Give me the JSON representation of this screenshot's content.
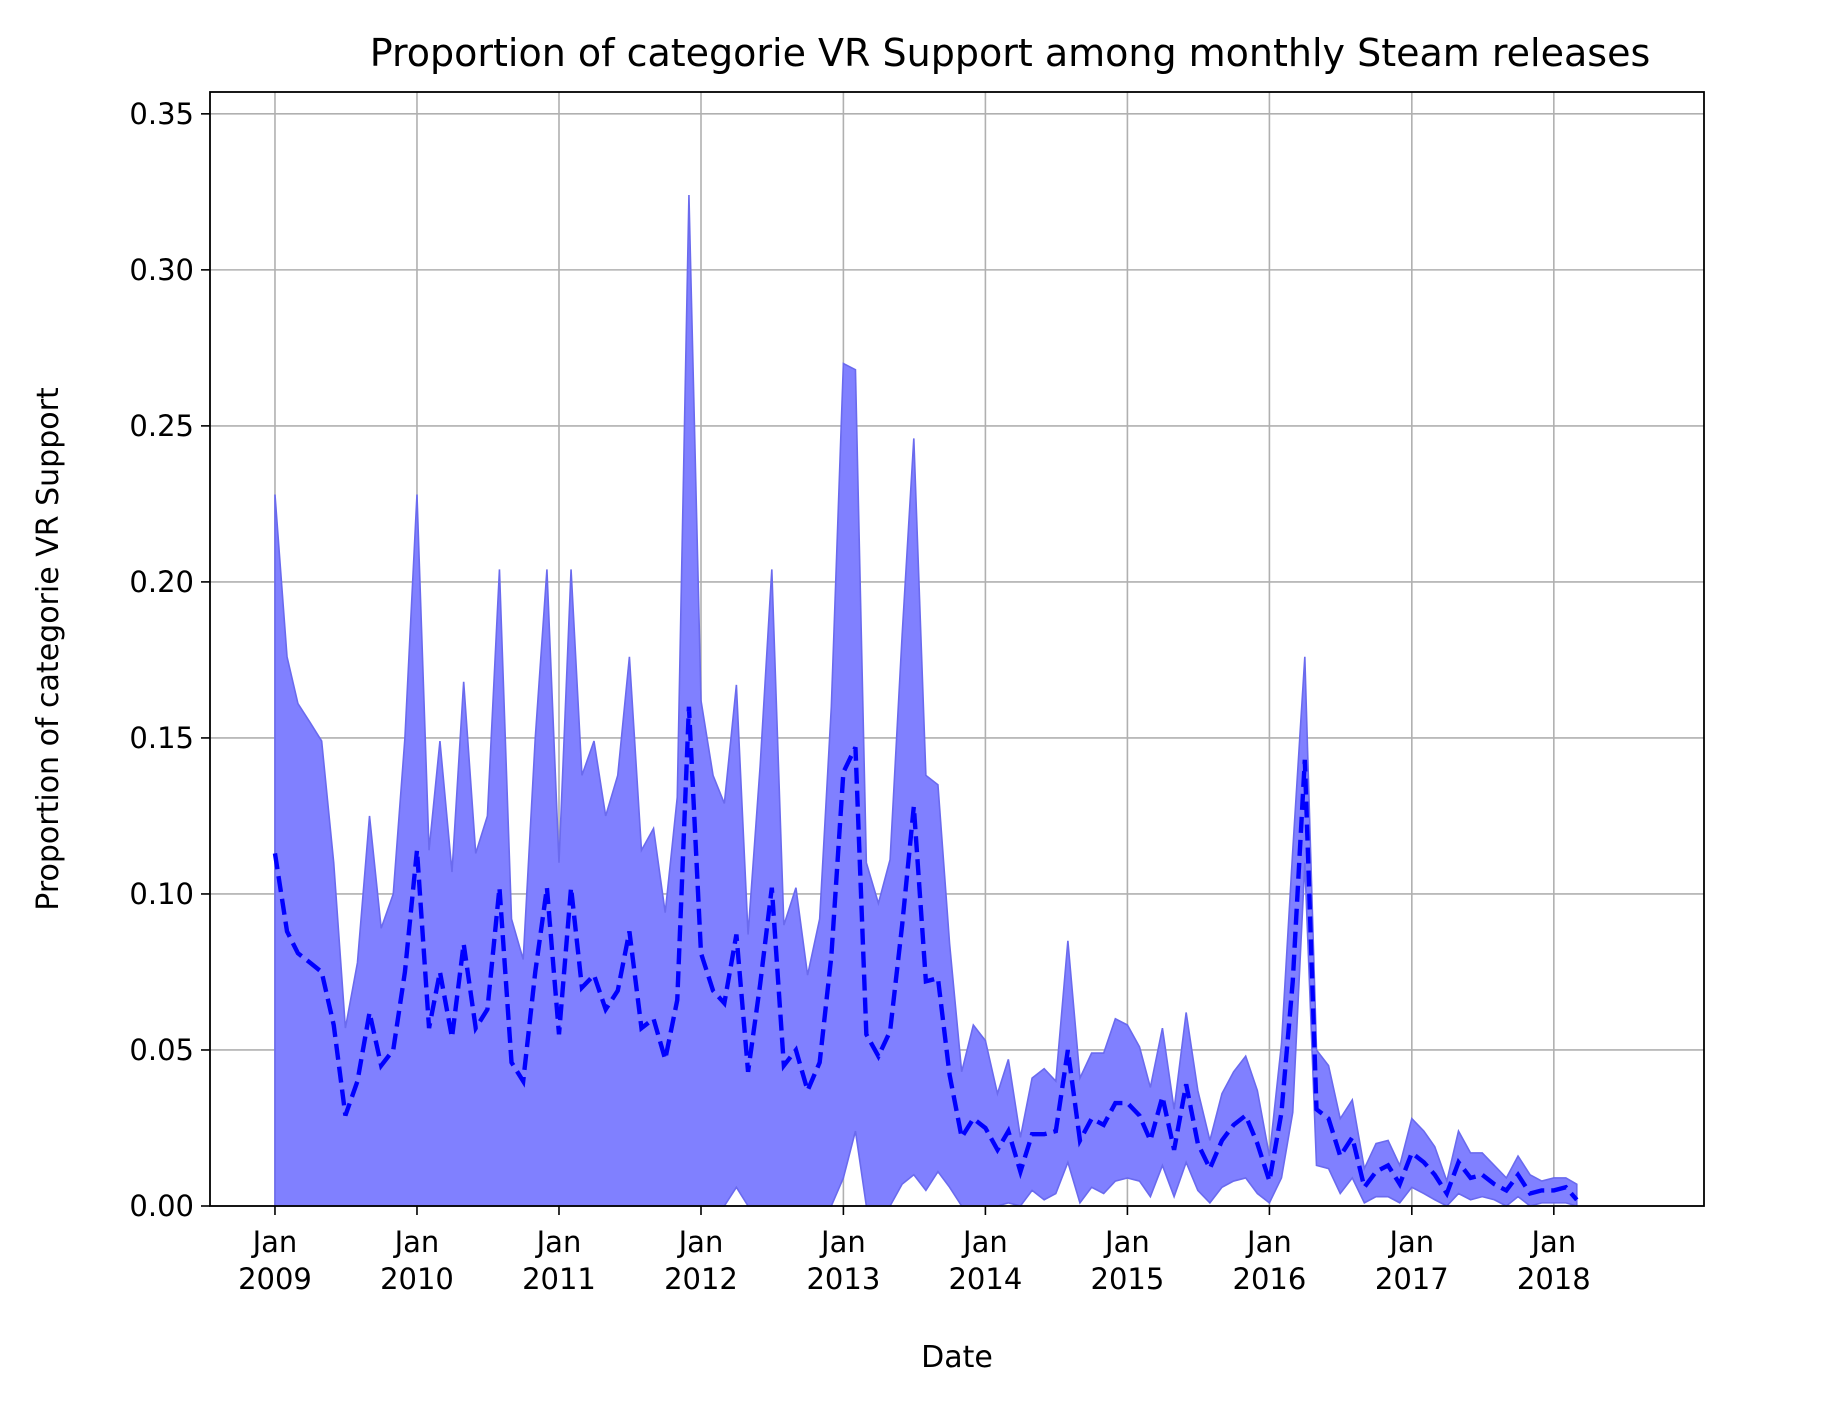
{
  "chart_data": {
    "type": "area",
    "title": "Proportion of categorie VR Support among monthly Steam releases",
    "xlabel": "Date",
    "ylabel": "Proportion of categorie VR Support",
    "ylim": [
      0,
      0.357
    ],
    "xlim": [
      "2008-07-18",
      "2019-01-22"
    ],
    "grid": true,
    "x_ticks": [
      {
        "date": "2009-01",
        "line1": "Jan",
        "line2": "2009"
      },
      {
        "date": "2010-01",
        "line1": "Jan",
        "line2": "2010"
      },
      {
        "date": "2011-01",
        "line1": "Jan",
        "line2": "2011"
      },
      {
        "date": "2012-01",
        "line1": "Jan",
        "line2": "2012"
      },
      {
        "date": "2013-01",
        "line1": "Jan",
        "line2": "2013"
      },
      {
        "date": "2014-01",
        "line1": "Jan",
        "line2": "2014"
      },
      {
        "date": "2015-01",
        "line1": "Jan",
        "line2": "2015"
      },
      {
        "date": "2016-01",
        "line1": "Jan",
        "line2": "2016"
      },
      {
        "date": "2017-01",
        "line1": "Jan",
        "line2": "2017"
      },
      {
        "date": "2018-01",
        "line1": "Jan",
        "line2": "2018"
      }
    ],
    "y_ticks": [
      "0.00",
      "0.05",
      "0.10",
      "0.15",
      "0.20",
      "0.25",
      "0.30",
      "0.35"
    ],
    "y_tick_values": [
      0,
      0.05,
      0.1,
      0.15,
      0.2,
      0.25,
      0.3,
      0.35
    ],
    "colors": {
      "line": "#0000ff",
      "band": "#8080ff",
      "band_edge": "#6666ee"
    },
    "x": [
      "2009-01",
      "2009-02",
      "2009-03",
      "2009-04",
      "2009-05",
      "2009-06",
      "2009-07",
      "2009-08",
      "2009-09",
      "2009-10",
      "2009-11",
      "2009-12",
      "2010-01",
      "2010-02",
      "2010-03",
      "2010-04",
      "2010-05",
      "2010-06",
      "2010-07",
      "2010-08",
      "2010-09",
      "2010-10",
      "2010-11",
      "2010-12",
      "2011-01",
      "2011-02",
      "2011-03",
      "2011-04",
      "2011-05",
      "2011-06",
      "2011-07",
      "2011-08",
      "2011-09",
      "2011-10",
      "2011-11",
      "2011-12",
      "2012-01",
      "2012-02",
      "2012-03",
      "2012-04",
      "2012-05",
      "2012-06",
      "2012-07",
      "2012-08",
      "2012-09",
      "2012-10",
      "2012-11",
      "2012-12",
      "2013-01",
      "2013-02",
      "2013-03",
      "2013-04",
      "2013-05",
      "2013-06",
      "2013-07",
      "2013-08",
      "2013-09",
      "2013-10",
      "2013-11",
      "2013-12",
      "2014-01",
      "2014-02",
      "2014-03",
      "2014-04",
      "2014-05",
      "2014-06",
      "2014-07",
      "2014-08",
      "2014-09",
      "2014-10",
      "2014-11",
      "2014-12",
      "2015-01",
      "2015-02",
      "2015-03",
      "2015-04",
      "2015-05",
      "2015-06",
      "2015-07",
      "2015-08",
      "2015-09",
      "2015-10",
      "2015-11",
      "2015-12",
      "2016-01",
      "2016-02",
      "2016-03",
      "2016-04",
      "2016-05",
      "2016-06",
      "2016-07",
      "2016-08",
      "2016-09",
      "2016-10",
      "2016-11",
      "2016-12",
      "2017-01",
      "2017-02",
      "2017-03",
      "2017-04",
      "2017-05",
      "2017-06",
      "2017-07",
      "2017-08",
      "2017-09",
      "2017-10",
      "2017-11",
      "2017-12",
      "2018-01",
      "2018-02",
      "2018-03"
    ],
    "series": [
      {
        "values": [
          0.113,
          0.088,
          0.081,
          0.078,
          0.075,
          0.058,
          0.029,
          0.04,
          0.062,
          0.045,
          0.05,
          0.075,
          0.114,
          0.057,
          0.075,
          0.054,
          0.084,
          0.057,
          0.063,
          0.102,
          0.046,
          0.04,
          0.075,
          0.102,
          0.055,
          0.102,
          0.07,
          0.074,
          0.063,
          0.069,
          0.088,
          0.057,
          0.06,
          0.047,
          0.066,
          0.16,
          0.081,
          0.069,
          0.065,
          0.087,
          0.043,
          0.071,
          0.102,
          0.045,
          0.05,
          0.037,
          0.046,
          0.08,
          0.139,
          0.147,
          0.055,
          0.048,
          0.056,
          0.09,
          0.128,
          0.072,
          0.073,
          0.042,
          0.022,
          0.028,
          0.025,
          0.018,
          0.024,
          0.011,
          0.023,
          0.023,
          0.024,
          0.05,
          0.021,
          0.028,
          0.026,
          0.033,
          0.033,
          0.029,
          0.021,
          0.035,
          0.018,
          0.039,
          0.02,
          0.012,
          0.021,
          0.026,
          0.029,
          0.02,
          0.008,
          0.03,
          0.072,
          0.143,
          0.031,
          0.028,
          0.016,
          0.022,
          0.006,
          0.011,
          0.013,
          0.007,
          0.017,
          0.014,
          0.01,
          0.004,
          0.014,
          0.009,
          0.01,
          0.007,
          0.005,
          0.01,
          0.004,
          0.005,
          0.005,
          0.006,
          0.002
        ]
      }
    ],
    "band": {
      "upper": [
        0.228,
        0.176,
        0.161,
        0.155,
        0.149,
        0.11,
        0.057,
        0.078,
        0.125,
        0.089,
        0.1,
        0.15,
        0.228,
        0.114,
        0.149,
        0.107,
        0.168,
        0.113,
        0.125,
        0.204,
        0.092,
        0.079,
        0.15,
        0.204,
        0.11,
        0.204,
        0.138,
        0.149,
        0.125,
        0.138,
        0.176,
        0.114,
        0.121,
        0.094,
        0.131,
        0.324,
        0.162,
        0.138,
        0.129,
        0.167,
        0.087,
        0.141,
        0.204,
        0.09,
        0.102,
        0.074,
        0.092,
        0.16,
        0.27,
        0.268,
        0.11,
        0.097,
        0.111,
        0.183,
        0.246,
        0.138,
        0.135,
        0.084,
        0.043,
        0.058,
        0.053,
        0.036,
        0.047,
        0.022,
        0.041,
        0.044,
        0.04,
        0.085,
        0.041,
        0.049,
        0.049,
        0.06,
        0.058,
        0.051,
        0.038,
        0.057,
        0.031,
        0.062,
        0.037,
        0.021,
        0.036,
        0.043,
        0.048,
        0.037,
        0.016,
        0.052,
        0.114,
        0.176,
        0.05,
        0.045,
        0.028,
        0.034,
        0.012,
        0.02,
        0.021,
        0.013,
        0.028,
        0.024,
        0.019,
        0.008,
        0.024,
        0.017,
        0.017,
        0.013,
        0.009,
        0.016,
        0.01,
        0.008,
        0.009,
        0.009,
        0.007
      ],
      "lower": [
        0,
        0,
        0,
        0,
        0,
        0,
        0,
        0,
        0,
        0,
        0,
        0,
        0,
        0,
        0,
        0,
        0,
        0,
        0,
        0,
        0,
        0,
        0,
        0,
        0,
        0,
        0,
        0,
        0,
        0,
        0,
        0,
        0,
        0,
        0,
        0,
        0,
        0,
        0,
        0.006,
        0,
        0,
        0,
        0,
        0,
        0,
        0,
        0,
        0.009,
        0.024,
        0,
        0,
        0,
        0.007,
        0.01,
        0.005,
        0.011,
        0.006,
        0,
        0,
        0,
        0,
        0.001,
        0,
        0.005,
        0.002,
        0.004,
        0.014,
        0.001,
        0.006,
        0.004,
        0.008,
        0.009,
        0.008,
        0.003,
        0.013,
        0.003,
        0.014,
        0.005,
        0.001,
        0.006,
        0.008,
        0.009,
        0.004,
        0.001,
        0.009,
        0.03,
        0.11,
        0.013,
        0.012,
        0.004,
        0.009,
        0.001,
        0.003,
        0.003,
        0.001,
        0.006,
        0.004,
        0.002,
        0,
        0.004,
        0.002,
        0.003,
        0.002,
        0,
        0.003,
        0,
        0.001,
        0.001,
        0.001,
        0
      ]
    }
  }
}
